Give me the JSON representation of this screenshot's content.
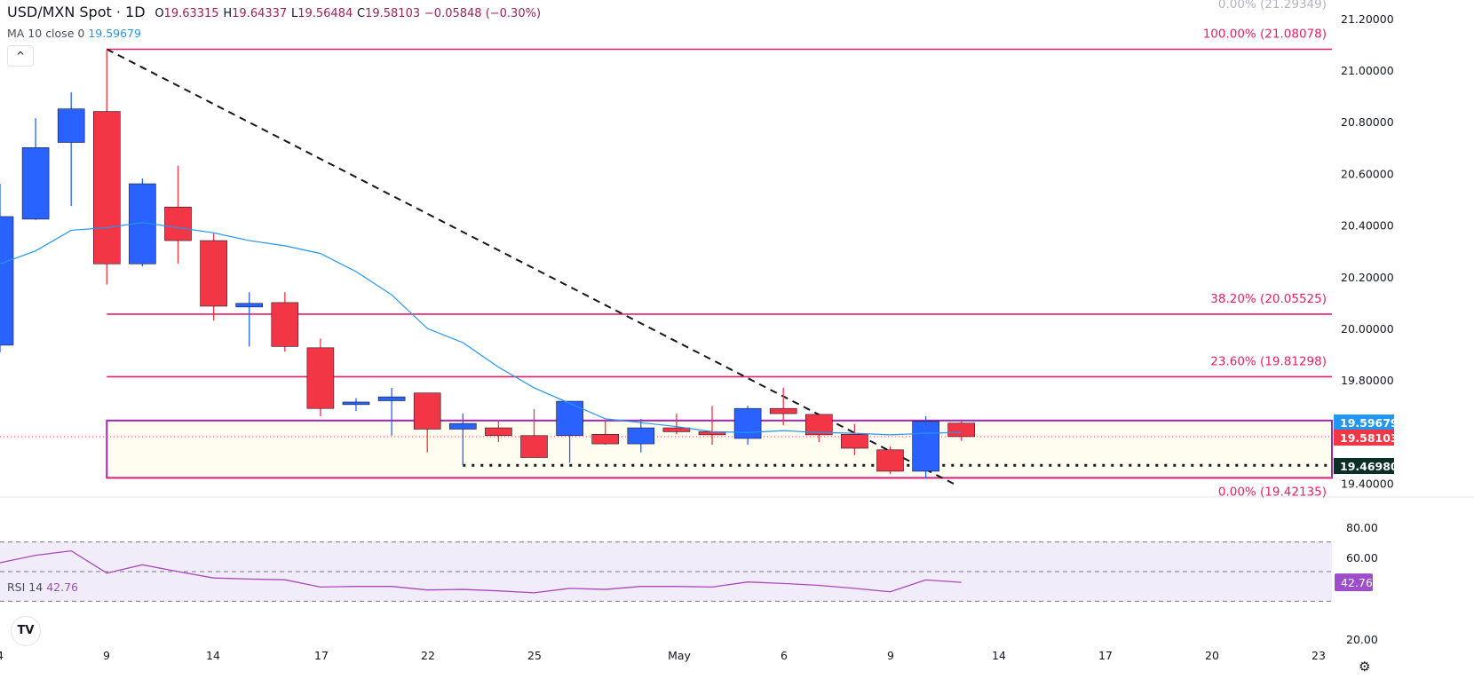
{
  "header": {
    "symbol": "USD/MXN Spot · 1D",
    "open_label": "O",
    "open": "19.63315",
    "high_label": "H",
    "high": "19.64337",
    "low_label": "L",
    "low": "19.56484",
    "close_label": "C",
    "close": "19.58103",
    "change": "−0.05848 (−0.30%)"
  },
  "ma": {
    "label": "MA 10 close 0",
    "value": "19.59679"
  },
  "rsi": {
    "label": "RSI 14",
    "value": "42.76"
  },
  "icons": {
    "collapse": "chevron-up-icon",
    "logo": "tradingview-logo",
    "settings": "settings-gear-icon"
  },
  "colors": {
    "up": "#2962ff",
    "down": "#f23645",
    "ma": "#2196f3",
    "rsi": "#ab47bc",
    "fib": "#e91e63",
    "range_box": "#9c27b0",
    "support_tag": "#0b2e26"
  },
  "chart_data": [
    {
      "type": "candlestick",
      "title": "USD/MXN Spot · 1D",
      "x_tick_labels": [
        "4",
        "9",
        "14",
        "17",
        "22",
        "25",
        "May",
        "6",
        "9",
        "14",
        "17",
        "20",
        "23"
      ],
      "y_tick_labels": [
        "21.20000",
        "21.00000",
        "20.80000",
        "20.60000",
        "20.40000",
        "20.20000",
        "20.00000",
        "19.80000",
        "19.40000"
      ],
      "ylim": [
        19.25,
        21.3
      ],
      "dates": [
        "Apr 4",
        "Apr 7",
        "Apr 8",
        "Apr 9",
        "Apr 10",
        "Apr 11",
        "Apr 14",
        "Apr 15",
        "Apr 16",
        "Apr 17",
        "Apr 18",
        "Apr 21",
        "Apr 22",
        "Apr 23",
        "Apr 24",
        "Apr 25",
        "Apr 28",
        "Apr 29",
        "Apr 30",
        "May 1",
        "May 2",
        "May 5",
        "May 6",
        "May 7",
        "May 8",
        "May 9",
        "May 12",
        "May 13"
      ],
      "ohlc": [
        [
          19.935,
          20.56,
          19.907,
          20.433
        ],
        [
          20.423,
          20.814,
          20.42,
          20.7
        ],
        [
          20.72,
          20.914,
          20.474,
          20.85
        ],
        [
          20.84,
          21.08078,
          20.17,
          20.25
        ],
        [
          20.25,
          20.58,
          20.24,
          20.56
        ],
        [
          20.47,
          20.63,
          20.25,
          20.34
        ],
        [
          20.34,
          20.37,
          20.03,
          20.086
        ],
        [
          20.083,
          20.14,
          19.93,
          20.097
        ],
        [
          20.1,
          20.14,
          19.91,
          19.93
        ],
        [
          19.925,
          19.96,
          19.66,
          19.69
        ],
        [
          19.705,
          19.73,
          19.68,
          19.715
        ],
        [
          19.72,
          19.77,
          19.585,
          19.735
        ],
        [
          19.75,
          19.75,
          19.52,
          19.61
        ],
        [
          19.61,
          19.67,
          19.4698,
          19.632
        ],
        [
          19.615,
          19.646,
          19.56,
          19.585
        ],
        [
          19.585,
          19.687,
          19.5,
          19.5
        ],
        [
          19.585,
          19.718,
          19.48,
          19.718
        ],
        [
          19.59,
          19.646,
          19.55,
          19.553
        ],
        [
          19.553,
          19.65,
          19.52,
          19.615
        ],
        [
          19.615,
          19.67,
          19.59,
          19.6
        ],
        [
          19.6,
          19.7,
          19.55,
          19.588
        ],
        [
          19.574,
          19.7,
          19.55,
          19.69
        ],
        [
          19.69,
          19.77,
          19.625,
          19.67
        ],
        [
          19.667,
          19.667,
          19.56,
          19.588
        ],
        [
          19.59,
          19.63,
          19.51,
          19.536
        ],
        [
          19.53,
          19.543,
          19.437,
          19.447
        ],
        [
          19.447,
          19.66,
          19.42135,
          19.64
        ],
        [
          19.63315,
          19.64337,
          19.56484,
          19.58103
        ]
      ],
      "ma10": [
        20.25,
        20.3,
        20.38,
        20.39,
        20.41,
        20.39,
        20.37,
        20.34,
        20.32,
        20.29,
        20.22,
        20.13,
        20.0,
        19.945,
        19.85,
        19.77,
        19.71,
        19.65,
        19.635,
        19.62,
        19.6,
        19.597,
        19.604,
        19.597,
        19.594,
        19.588,
        19.594,
        19.59679
      ],
      "fib_levels": [
        {
          "label": "0.00% (21.29349)",
          "price": 21.29349
        },
        {
          "label": "100.00% (21.08078)",
          "price": 21.08078
        },
        {
          "label": "38.20% (20.05525)",
          "price": 20.05525
        },
        {
          "label": "23.60% (19.81298)",
          "price": 19.81298
        },
        {
          "label": "0.00% (19.42135)",
          "price": 19.42135
        }
      ],
      "range_box": {
        "top": 19.64337,
        "bottom": 19.42135,
        "start": "Apr 9"
      },
      "support_line": {
        "price": 19.4698,
        "label": "19.46980",
        "start": "Apr 23"
      },
      "trendline": {
        "start": {
          "date": "Apr 9",
          "price": 21.08078
        },
        "end": {
          "date": "May 12",
          "price": 19.43
        },
        "style": "dashed"
      },
      "price_tags": [
        {
          "label": "19.59679",
          "price": 19.59679,
          "kind": "ma"
        },
        {
          "label": "19.58103",
          "price": 19.58103,
          "kind": "last"
        },
        {
          "label": "19.46980",
          "price": 19.4698,
          "kind": "support"
        }
      ]
    },
    {
      "type": "line",
      "title": "RSI 14",
      "y_tick_labels": [
        "80.00",
        "60.00",
        "20.00"
      ],
      "ylim": [
        20,
        80
      ],
      "bands": [
        70,
        50,
        30
      ],
      "values": [
        56,
        61,
        64,
        49,
        54.6,
        50,
        45.7,
        45,
        44.5,
        39.6,
        40,
        40,
        37.6,
        38,
        37,
        35.7,
        38.7,
        38,
        40,
        40,
        39.6,
        43,
        42,
        40.7,
        38.7,
        36.4,
        44.4,
        42.76
      ],
      "last_label": "42.76"
    }
  ]
}
